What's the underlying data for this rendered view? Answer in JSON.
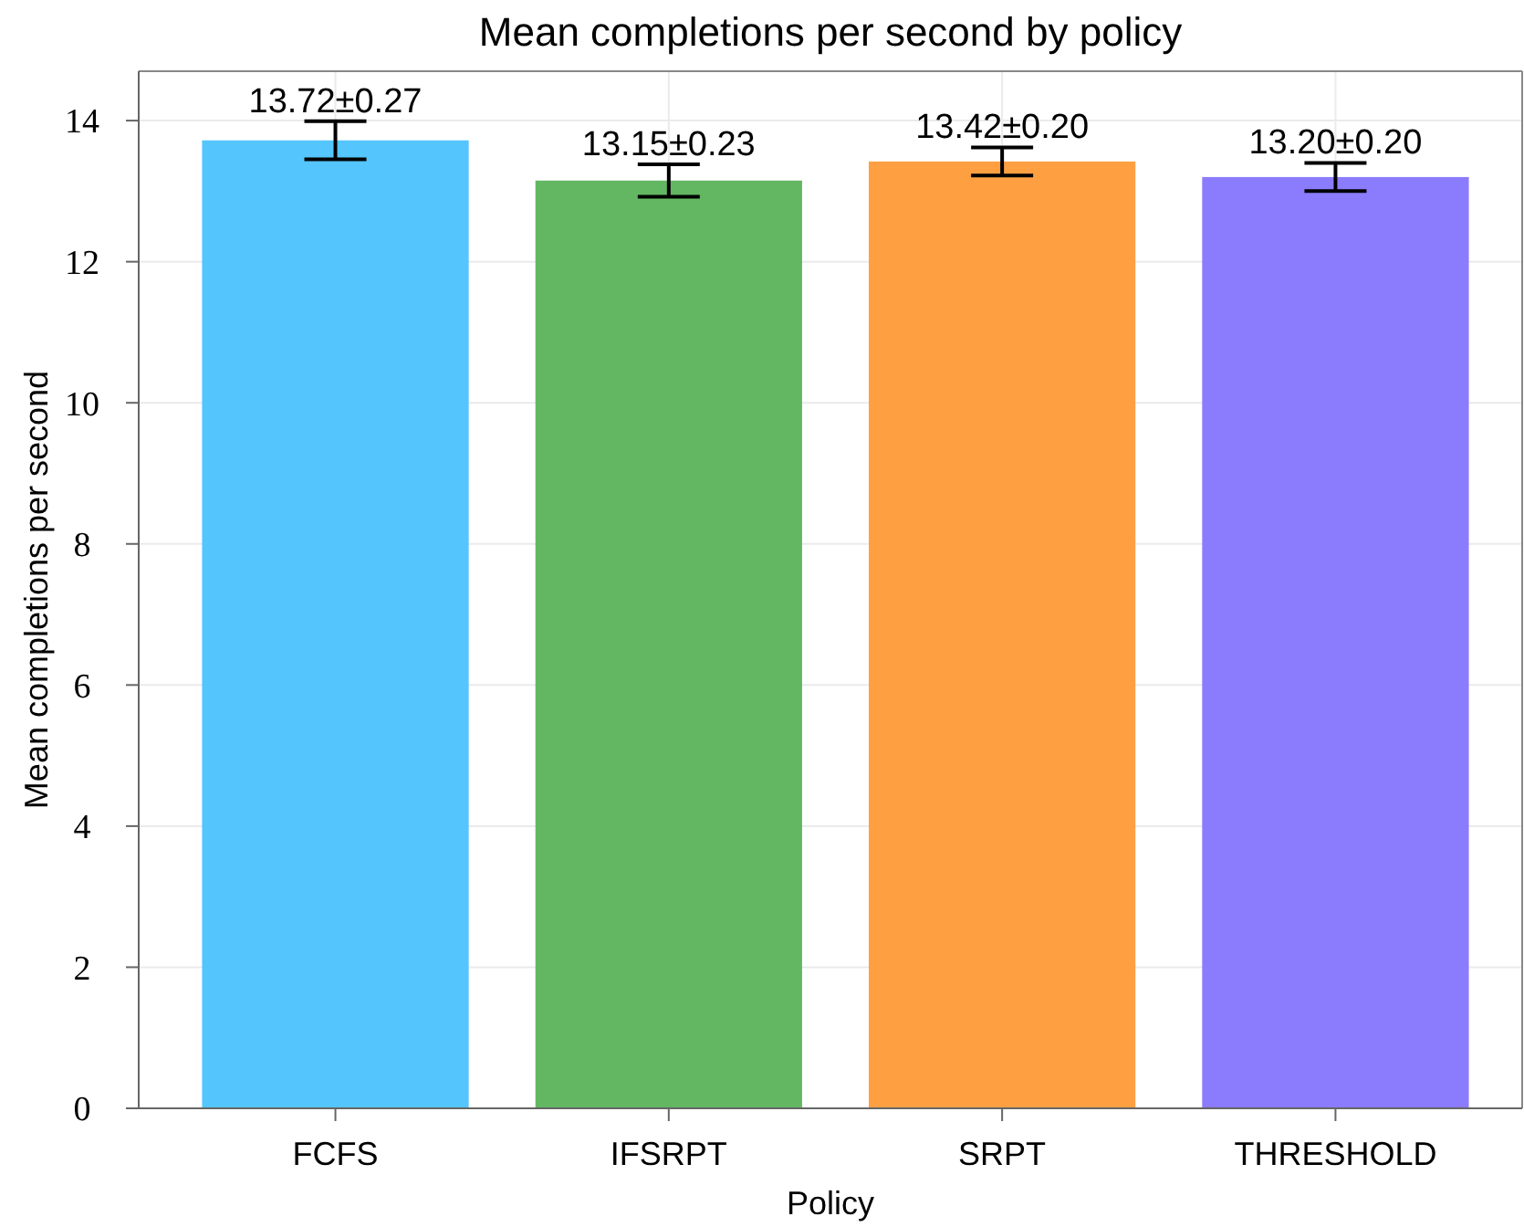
{
  "chart_data": {
    "type": "bar",
    "title": "Mean completions per second by policy",
    "xlabel": "Policy",
    "ylabel": "Mean completions per second",
    "categories": [
      "FCFS",
      "IFSRPT",
      "SRPT",
      "THRESHOLD"
    ],
    "values": [
      13.72,
      13.15,
      13.42,
      13.2
    ],
    "errors": [
      0.27,
      0.23,
      0.2,
      0.2
    ],
    "colors": [
      "#55c5fe",
      "#63b762",
      "#fe9f42",
      "#8b7cfd"
    ],
    "value_labels": [
      "13.72±0.27",
      "13.15±0.23",
      "13.42±0.20",
      "13.20±0.20"
    ],
    "ylim": [
      0,
      14.7
    ],
    "yticks": [
      0,
      2,
      4,
      6,
      8,
      10,
      12,
      14
    ],
    "grid": true
  }
}
